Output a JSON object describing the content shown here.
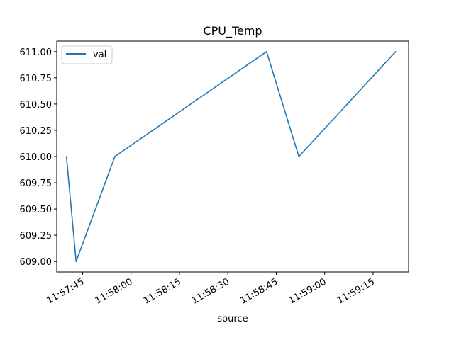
{
  "chart_data": {
    "type": "line",
    "title": "CPU_Temp",
    "xlabel": "source",
    "ylabel": "",
    "x": [
      "11:57:40",
      "11:57:43",
      "11:57:55",
      "11:58:42",
      "11:58:52",
      "11:59:22"
    ],
    "series": [
      {
        "name": "val",
        "values": [
          610.0,
          609.0,
          610.0,
          611.0,
          610.0,
          611.0
        ],
        "color": "#1f77b4"
      }
    ],
    "xlim": [
      "11:57:37",
      "11:59:26"
    ],
    "ylim": [
      608.9,
      611.1
    ],
    "x_ticks": [
      "11:57:45",
      "11:58:00",
      "11:58:15",
      "11:58:30",
      "11:58:45",
      "11:59:00",
      "11:59:15"
    ],
    "y_ticks": [
      "609.00",
      "609.25",
      "609.50",
      "609.75",
      "610.00",
      "610.25",
      "610.50",
      "610.75",
      "611.00"
    ],
    "grid": false,
    "legend": "top-left"
  }
}
